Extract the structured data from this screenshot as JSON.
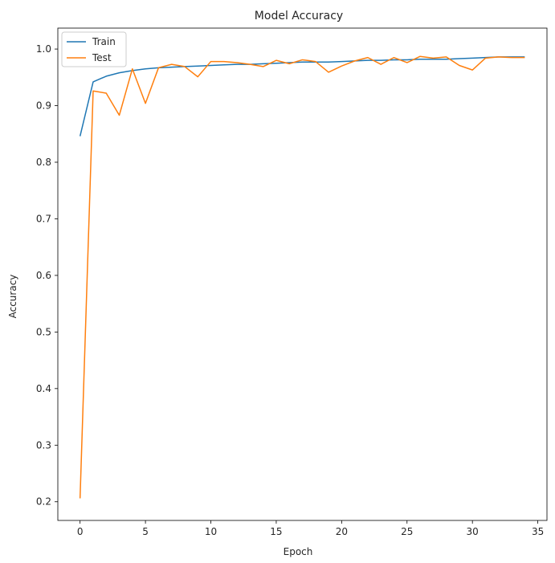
{
  "chart_data": {
    "type": "line",
    "title": "Model Accuracy",
    "xlabel": "Epoch",
    "ylabel": "Accuracy",
    "xlim": [
      -1.7,
      35.7
    ],
    "ylim": [
      0.167,
      1.037
    ],
    "xticks": [
      0,
      5,
      10,
      15,
      20,
      25,
      30,
      35
    ],
    "yticks": [
      0.2,
      0.3,
      0.4,
      0.5,
      0.6,
      0.7,
      0.8,
      0.9,
      1.0
    ],
    "ytick_labels": [
      "0.2",
      "0.3",
      "0.4",
      "0.5",
      "0.6",
      "0.7",
      "0.8",
      "0.9",
      "1.0"
    ],
    "grid": false,
    "legend_position": "upper-left",
    "x": [
      0,
      1,
      2,
      3,
      4,
      5,
      6,
      7,
      8,
      9,
      10,
      11,
      12,
      13,
      14,
      15,
      16,
      17,
      18,
      19,
      20,
      21,
      22,
      23,
      24,
      25,
      26,
      27,
      28,
      29,
      30,
      31,
      32,
      33,
      34
    ],
    "series": [
      {
        "name": "Train",
        "color": "#1f77b4",
        "values": [
          0.846,
          0.942,
          0.952,
          0.958,
          0.962,
          0.965,
          0.967,
          0.968,
          0.969,
          0.97,
          0.971,
          0.972,
          0.973,
          0.973,
          0.974,
          0.975,
          0.976,
          0.977,
          0.977,
          0.977,
          0.978,
          0.979,
          0.98,
          0.98,
          0.981,
          0.981,
          0.982,
          0.982,
          0.982,
          0.983,
          0.984,
          0.985,
          0.986,
          0.986,
          0.986
        ]
      },
      {
        "name": "Test",
        "color": "#ff7f0e",
        "values": [
          0.206,
          0.926,
          0.922,
          0.883,
          0.965,
          0.904,
          0.967,
          0.973,
          0.969,
          0.951,
          0.978,
          0.978,
          0.976,
          0.973,
          0.969,
          0.98,
          0.974,
          0.981,
          0.978,
          0.959,
          0.97,
          0.979,
          0.985,
          0.973,
          0.985,
          0.976,
          0.987,
          0.984,
          0.986,
          0.971,
          0.963,
          0.984,
          0.986,
          0.985,
          0.985
        ]
      }
    ]
  }
}
